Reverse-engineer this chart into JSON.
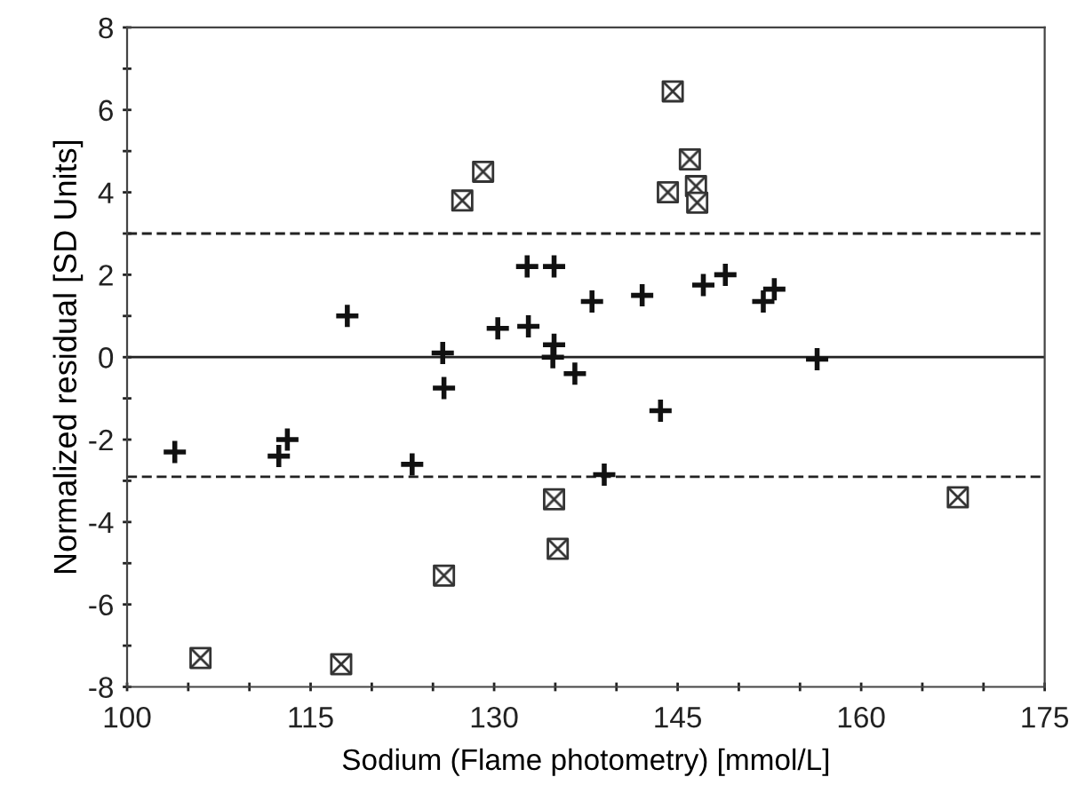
{
  "chart_data": {
    "type": "scatter",
    "xlabel": "Sodium (Flame photometry) [mmol/L]",
    "ylabel": "Normalized residual [SD Units]",
    "xlim": [
      100,
      175
    ],
    "ylim": [
      -8,
      8
    ],
    "xticks": [
      100,
      {
        "value": 105,
        "label": null
      },
      {
        "value": 110,
        "label": null
      },
      115,
      {
        "value": 120,
        "label": null
      },
      {
        "value": 125,
        "label": null
      },
      130,
      {
        "value": 135,
        "label": null
      },
      {
        "value": 140,
        "label": null
      },
      145,
      {
        "value": 150,
        "label": null
      },
      {
        "value": 155,
        "label": null
      },
      160,
      {
        "value": 165,
        "label": null
      },
      {
        "value": 170,
        "label": null
      },
      175
    ],
    "yticks": [
      -8,
      {
        "value": -7,
        "label": null
      },
      -6,
      {
        "value": -5,
        "label": null
      },
      -4,
      {
        "value": -3,
        "label": null
      },
      -2,
      {
        "value": -1,
        "label": null
      },
      0,
      {
        "value": 1,
        "label": null
      },
      2,
      {
        "value": 3,
        "label": null
      },
      4,
      {
        "value": 5,
        "label": null
      },
      6,
      {
        "value": 7,
        "label": null
      },
      8
    ],
    "grid": false,
    "legend": false,
    "ref_lines": [
      {
        "axis": "y",
        "value": 0,
        "line_style": "solid",
        "color": "#222222"
      },
      {
        "axis": "y",
        "value": 3,
        "line_style": "dashed",
        "color": "#222222"
      },
      {
        "axis": "y",
        "value": -2.9,
        "line_style": "dashed",
        "color": "#222222"
      }
    ],
    "series": [
      {
        "marker": "cross",
        "color": "#111111",
        "x": [
          103.9,
          112.4,
          113.1,
          118.0,
          123.3,
          125.8,
          125.9,
          130.3,
          132.8,
          132.7,
          134.9,
          134.9,
          134.8,
          136.6,
          138.0,
          139.0,
          142.1,
          143.6,
          147.1,
          148.9,
          152.0,
          152.9,
          156.4
        ],
        "values": [
          -2.3,
          -2.4,
          -2.0,
          1.0,
          -2.6,
          0.1,
          -0.75,
          0.7,
          0.75,
          2.2,
          2.2,
          0.3,
          0.0,
          -0.4,
          1.35,
          -2.85,
          1.5,
          -1.3,
          1.75,
          2.0,
          1.35,
          1.65,
          -0.05
        ]
      },
      {
        "marker": "square",
        "color": "#333333",
        "x": [
          129.1,
          127.4,
          134.9,
          135.2,
          125.9,
          106.0,
          117.5,
          144.6,
          146.0,
          144.2,
          146.5,
          146.6,
          167.9
        ],
        "values": [
          4.5,
          3.8,
          -3.45,
          -4.65,
          -5.3,
          -7.3,
          -7.45,
          6.45,
          4.8,
          4.0,
          4.15,
          3.75,
          -3.4
        ]
      }
    ]
  }
}
